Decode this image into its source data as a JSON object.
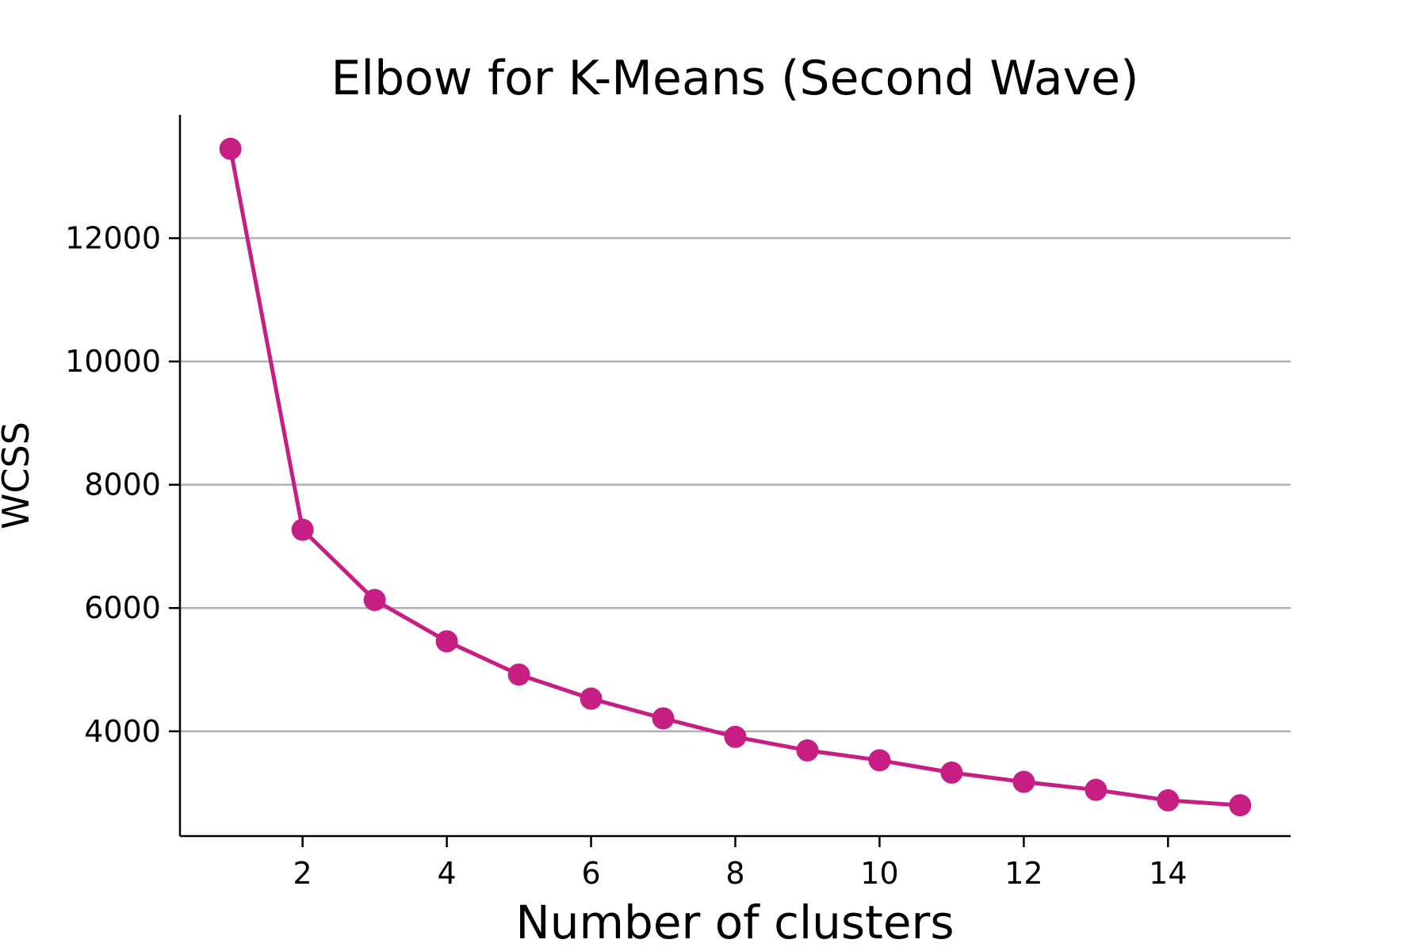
{
  "chart_data": {
    "type": "line",
    "title": "Elbow for K-Means (Second Wave)",
    "xlabel": "Number of clusters",
    "ylabel": "WCSS",
    "x": [
      1,
      2,
      3,
      4,
      5,
      6,
      7,
      8,
      9,
      10,
      11,
      12,
      13,
      14,
      15
    ],
    "series": [
      {
        "values": [
          13450,
          7270,
          6130,
          5460,
          4920,
          4530,
          4210,
          3910,
          3690,
          3530,
          3330,
          3180,
          3050,
          2880,
          2800
        ]
      }
    ],
    "xlim": [
      0.3,
      15.7
    ],
    "ylim": [
      2300,
      14000
    ],
    "xticks": [
      2,
      4,
      6,
      8,
      10,
      12,
      14
    ],
    "yticks": [
      4000,
      6000,
      8000,
      10000,
      12000
    ],
    "grid": "horizontal",
    "legend": "none",
    "colors": {
      "line": "#c71e84",
      "grid": "#b0b0b0",
      "axis": "#000000"
    }
  }
}
